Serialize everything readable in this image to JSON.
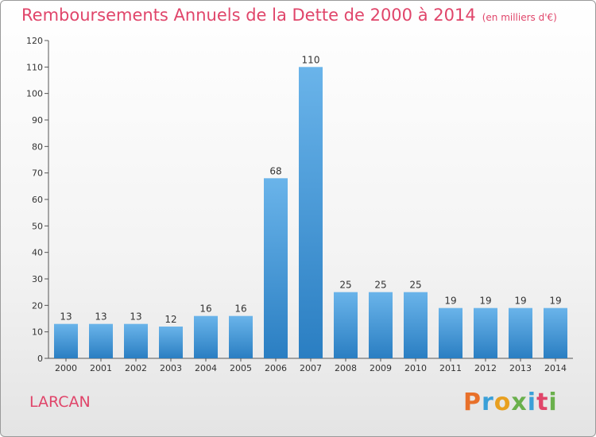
{
  "title": "Remboursements Annuels de la Dette de 2000 à 2014",
  "unit_note": "(en milliers d'€)",
  "place": "LARCAN",
  "logo": {
    "letters": [
      "P",
      "r",
      "o",
      "x",
      "i",
      "t",
      "i"
    ],
    "colors": [
      "#e8702a",
      "#3aa0d8",
      "#e8a020",
      "#6ab04c",
      "#3aa0d8",
      "#e0456a",
      "#6ab04c"
    ]
  },
  "colors": {
    "bar_top": "#6ab4ea",
    "bar_bottom": "#2a7ec2",
    "title": "#e0456a"
  },
  "chart_data": {
    "type": "bar",
    "categories": [
      "2000",
      "2001",
      "2002",
      "2003",
      "2004",
      "2005",
      "2006",
      "2007",
      "2008",
      "2009",
      "2010",
      "2011",
      "2012",
      "2013",
      "2014"
    ],
    "values": [
      13,
      13,
      13,
      12,
      16,
      16,
      68,
      110,
      25,
      25,
      25,
      19,
      19,
      19,
      19
    ],
    "data_labels": [
      "13",
      "13",
      "13",
      "12",
      "16",
      "16",
      "68",
      "110",
      "25",
      "25",
      "25",
      "19",
      "19",
      "19",
      "19"
    ],
    "yticks": [
      "0",
      "10",
      "20",
      "30",
      "40",
      "50",
      "60",
      "70",
      "80",
      "90",
      "100",
      "110",
      "120"
    ],
    "ylim": [
      0,
      120
    ],
    "grid": false
  }
}
